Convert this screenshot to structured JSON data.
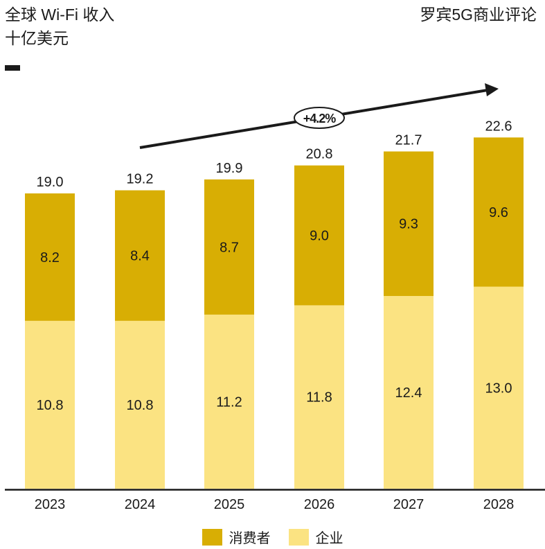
{
  "header": {
    "title_line1": "全球 Wi-Fi 收入",
    "title_line2": "十亿美元",
    "brand": "罗宾5G商业评论"
  },
  "colors": {
    "consumer": "#d8ae04",
    "enterprise": "#fbe382",
    "text": "#1a1a1a"
  },
  "chart_data": {
    "type": "bar",
    "stacked": true,
    "title": "全球 Wi-Fi 收入",
    "ylabel": "十亿美元",
    "xlabel": "",
    "categories": [
      "2023",
      "2024",
      "2025",
      "2026",
      "2027",
      "2028"
    ],
    "series": [
      {
        "name": "企业",
        "values": [
          10.8,
          10.8,
          11.2,
          11.8,
          12.4,
          13.0
        ],
        "labels": [
          "10.8",
          "10.8",
          "11.2",
          "11.8",
          "12.4",
          "13.0"
        ]
      },
      {
        "name": "消费者",
        "values": [
          8.2,
          8.4,
          8.7,
          9.0,
          9.3,
          9.6
        ],
        "labels": [
          "8.2",
          "8.4",
          "8.7",
          "9.0",
          "9.3",
          "9.6"
        ]
      }
    ],
    "totals": [
      19.0,
      19.2,
      19.9,
      20.8,
      21.7,
      22.6
    ],
    "total_labels": [
      "19.0",
      "19.2",
      "19.9",
      "20.8",
      "21.7",
      "22.6"
    ],
    "ylim": [
      0,
      23.5
    ],
    "grid": false,
    "legend": {
      "position": "bottom-center",
      "entries": [
        "消费者",
        "企业"
      ]
    },
    "annotation": {
      "text": "+4.2%",
      "type": "growth-arrow"
    }
  }
}
